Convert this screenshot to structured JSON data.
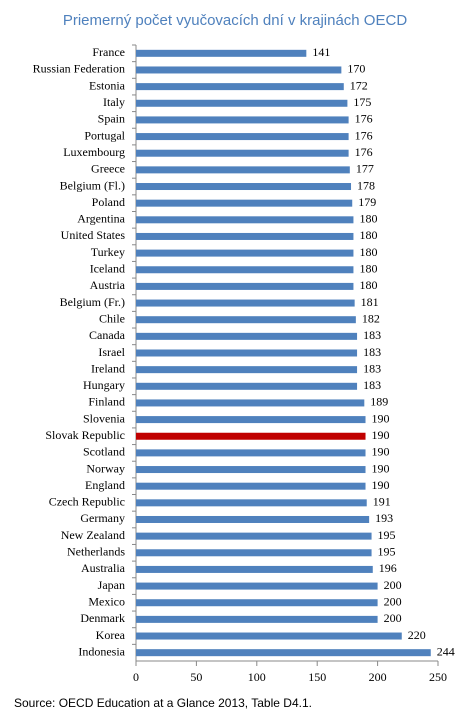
{
  "chart_data": {
    "type": "barh",
    "title": "Priemerný počet vyučovacích dní v krajinách OECD",
    "source": "Source: OECD Education at a Glance 2013, Table D4.1.",
    "categories": [
      "France",
      "Russian Federation",
      "Estonia",
      "Italy",
      "Spain",
      "Portugal",
      "Luxembourg",
      "Greece",
      "Belgium (Fl.)",
      "Poland",
      "Argentina",
      "United States",
      "Turkey",
      "Iceland",
      "Austria",
      "Belgium (Fr.)",
      "Chile",
      "Canada",
      "Israel",
      "Ireland",
      "Hungary",
      "Finland",
      "Slovenia",
      "Slovak Republic",
      "Scotland",
      "Norway",
      "England",
      "Czech Republic",
      "Germany",
      "New Zealand",
      "Netherlands",
      "Australia",
      "Japan",
      "Mexico",
      "Denmark",
      "Korea",
      "Indonesia"
    ],
    "values": [
      141,
      170,
      172,
      175,
      176,
      176,
      176,
      177,
      178,
      179,
      180,
      180,
      180,
      180,
      180,
      181,
      182,
      183,
      183,
      183,
      183,
      189,
      190,
      190,
      190,
      190,
      190,
      191,
      193,
      195,
      195,
      196,
      200,
      200,
      200,
      220,
      244
    ],
    "color": "#4f81bd",
    "highlight": {
      "category": "Slovak Republic",
      "color": "#c00000"
    },
    "xlim": [
      0,
      250
    ],
    "xticks": [
      0,
      50,
      100,
      150,
      200,
      250
    ]
  }
}
